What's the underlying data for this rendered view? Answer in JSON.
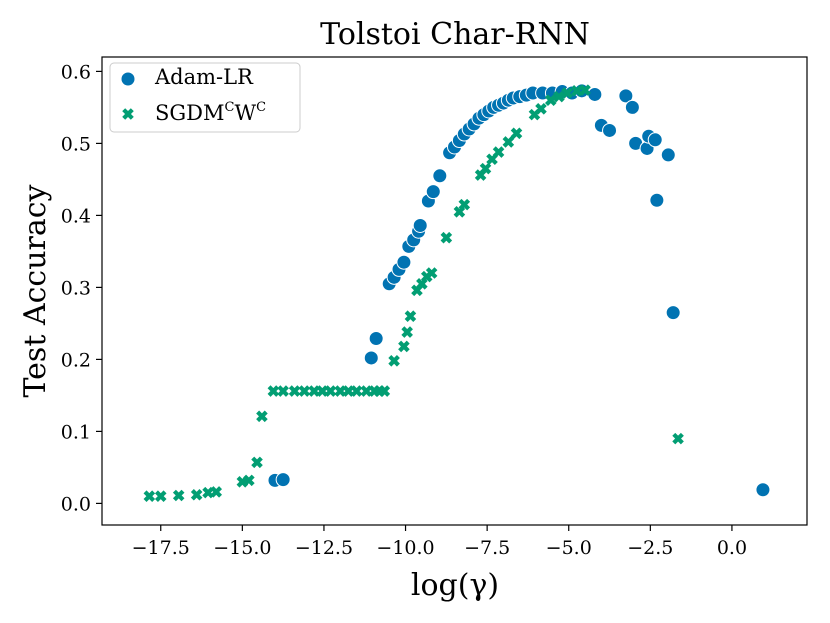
{
  "chart_data": {
    "type": "scatter",
    "title": "Tolstoi Char-RNN",
    "xlabel": "log(γ)",
    "ylabel": "Test Accuracy",
    "xlim": [
      -19.3,
      2.3
    ],
    "ylim": [
      -0.03,
      0.62
    ],
    "xticks": [
      -17.5,
      -15.0,
      -12.5,
      -10.0,
      -7.5,
      -5.0,
      -2.5,
      0.0
    ],
    "xtick_labels": [
      "−17.5",
      "−15.0",
      "−12.5",
      "−10.0",
      "−7.5",
      "−5.0",
      "−2.5",
      "0.0"
    ],
    "yticks": [
      0.0,
      0.1,
      0.2,
      0.3,
      0.4,
      0.5,
      0.6
    ],
    "ytick_labels": [
      "0.0",
      "0.1",
      "0.2",
      "0.3",
      "0.4",
      "0.5",
      "0.6"
    ],
    "legend_position": "top-left",
    "series": [
      {
        "name": "Adam-LR",
        "legend_label": "Adam-LR",
        "marker": "circle",
        "color": "#0173b2",
        "points": [
          [
            -14.0,
            0.032
          ],
          [
            -13.75,
            0.033
          ],
          [
            -11.05,
            0.202
          ],
          [
            -10.9,
            0.229
          ],
          [
            -10.5,
            0.305
          ],
          [
            -10.35,
            0.314
          ],
          [
            -10.2,
            0.325
          ],
          [
            -10.05,
            0.335
          ],
          [
            -9.9,
            0.357
          ],
          [
            -9.75,
            0.366
          ],
          [
            -9.6,
            0.378
          ],
          [
            -9.55,
            0.386
          ],
          [
            -9.3,
            0.42
          ],
          [
            -9.15,
            0.433
          ],
          [
            -8.95,
            0.455
          ],
          [
            -8.65,
            0.487
          ],
          [
            -8.5,
            0.495
          ],
          [
            -8.35,
            0.504
          ],
          [
            -8.2,
            0.513
          ],
          [
            -8.05,
            0.52
          ],
          [
            -7.9,
            0.527
          ],
          [
            -7.75,
            0.535
          ],
          [
            -7.6,
            0.54
          ],
          [
            -7.45,
            0.545
          ],
          [
            -7.3,
            0.55
          ],
          [
            -7.15,
            0.553
          ],
          [
            -7.0,
            0.556
          ],
          [
            -6.85,
            0.56
          ],
          [
            -6.7,
            0.563
          ],
          [
            -6.5,
            0.565
          ],
          [
            -6.3,
            0.567
          ],
          [
            -6.1,
            0.57
          ],
          [
            -5.8,
            0.57
          ],
          [
            -5.5,
            0.57
          ],
          [
            -5.2,
            0.572
          ],
          [
            -4.9,
            0.57
          ],
          [
            -4.6,
            0.573
          ],
          [
            -4.2,
            0.568
          ],
          [
            -4.0,
            0.525
          ],
          [
            -3.75,
            0.518
          ],
          [
            -3.25,
            0.566
          ],
          [
            -3.05,
            0.55
          ],
          [
            -2.95,
            0.5
          ],
          [
            -2.6,
            0.493
          ],
          [
            -2.55,
            0.51
          ],
          [
            -2.35,
            0.505
          ],
          [
            -2.3,
            0.421
          ],
          [
            -1.95,
            0.484
          ],
          [
            -1.8,
            0.265
          ],
          [
            0.95,
            0.019
          ]
        ]
      },
      {
        "name": "SGDMCWC",
        "legend_label": "SGDM",
        "legend_sup": "C",
        "legend_label_2": "W",
        "legend_sup_2": "C",
        "marker": "x",
        "color": "#029e73",
        "points": [
          [
            -17.85,
            0.01
          ],
          [
            -17.5,
            0.01
          ],
          [
            -16.95,
            0.011
          ],
          [
            -16.4,
            0.012
          ],
          [
            -16.05,
            0.015
          ],
          [
            -15.8,
            0.016
          ],
          [
            -15.0,
            0.03
          ],
          [
            -14.8,
            0.032
          ],
          [
            -14.55,
            0.057
          ],
          [
            -14.4,
            0.121
          ],
          [
            -14.05,
            0.156
          ],
          [
            -13.75,
            0.156
          ],
          [
            -13.4,
            0.156
          ],
          [
            -13.1,
            0.156
          ],
          [
            -12.8,
            0.156
          ],
          [
            -12.55,
            0.156
          ],
          [
            -12.3,
            0.156
          ],
          [
            -12.0,
            0.156
          ],
          [
            -11.75,
            0.156
          ],
          [
            -11.5,
            0.156
          ],
          [
            -11.2,
            0.156
          ],
          [
            -10.95,
            0.156
          ],
          [
            -10.8,
            0.156
          ],
          [
            -10.65,
            0.156
          ],
          [
            -10.35,
            0.198
          ],
          [
            -10.05,
            0.218
          ],
          [
            -9.95,
            0.238
          ],
          [
            -9.85,
            0.26
          ],
          [
            -9.65,
            0.296
          ],
          [
            -9.5,
            0.305
          ],
          [
            -9.35,
            0.315
          ],
          [
            -9.2,
            0.32
          ],
          [
            -8.75,
            0.369
          ],
          [
            -8.35,
            0.405
          ],
          [
            -8.2,
            0.415
          ],
          [
            -7.7,
            0.456
          ],
          [
            -7.55,
            0.465
          ],
          [
            -7.35,
            0.478
          ],
          [
            -7.15,
            0.488
          ],
          [
            -6.85,
            0.502
          ],
          [
            -6.6,
            0.514
          ],
          [
            -6.05,
            0.54
          ],
          [
            -5.85,
            0.548
          ],
          [
            -5.55,
            0.56
          ],
          [
            -5.3,
            0.565
          ],
          [
            -5.05,
            0.57
          ],
          [
            -4.75,
            0.573
          ],
          [
            -4.5,
            0.574
          ],
          [
            -1.65,
            0.09
          ]
        ]
      }
    ]
  }
}
